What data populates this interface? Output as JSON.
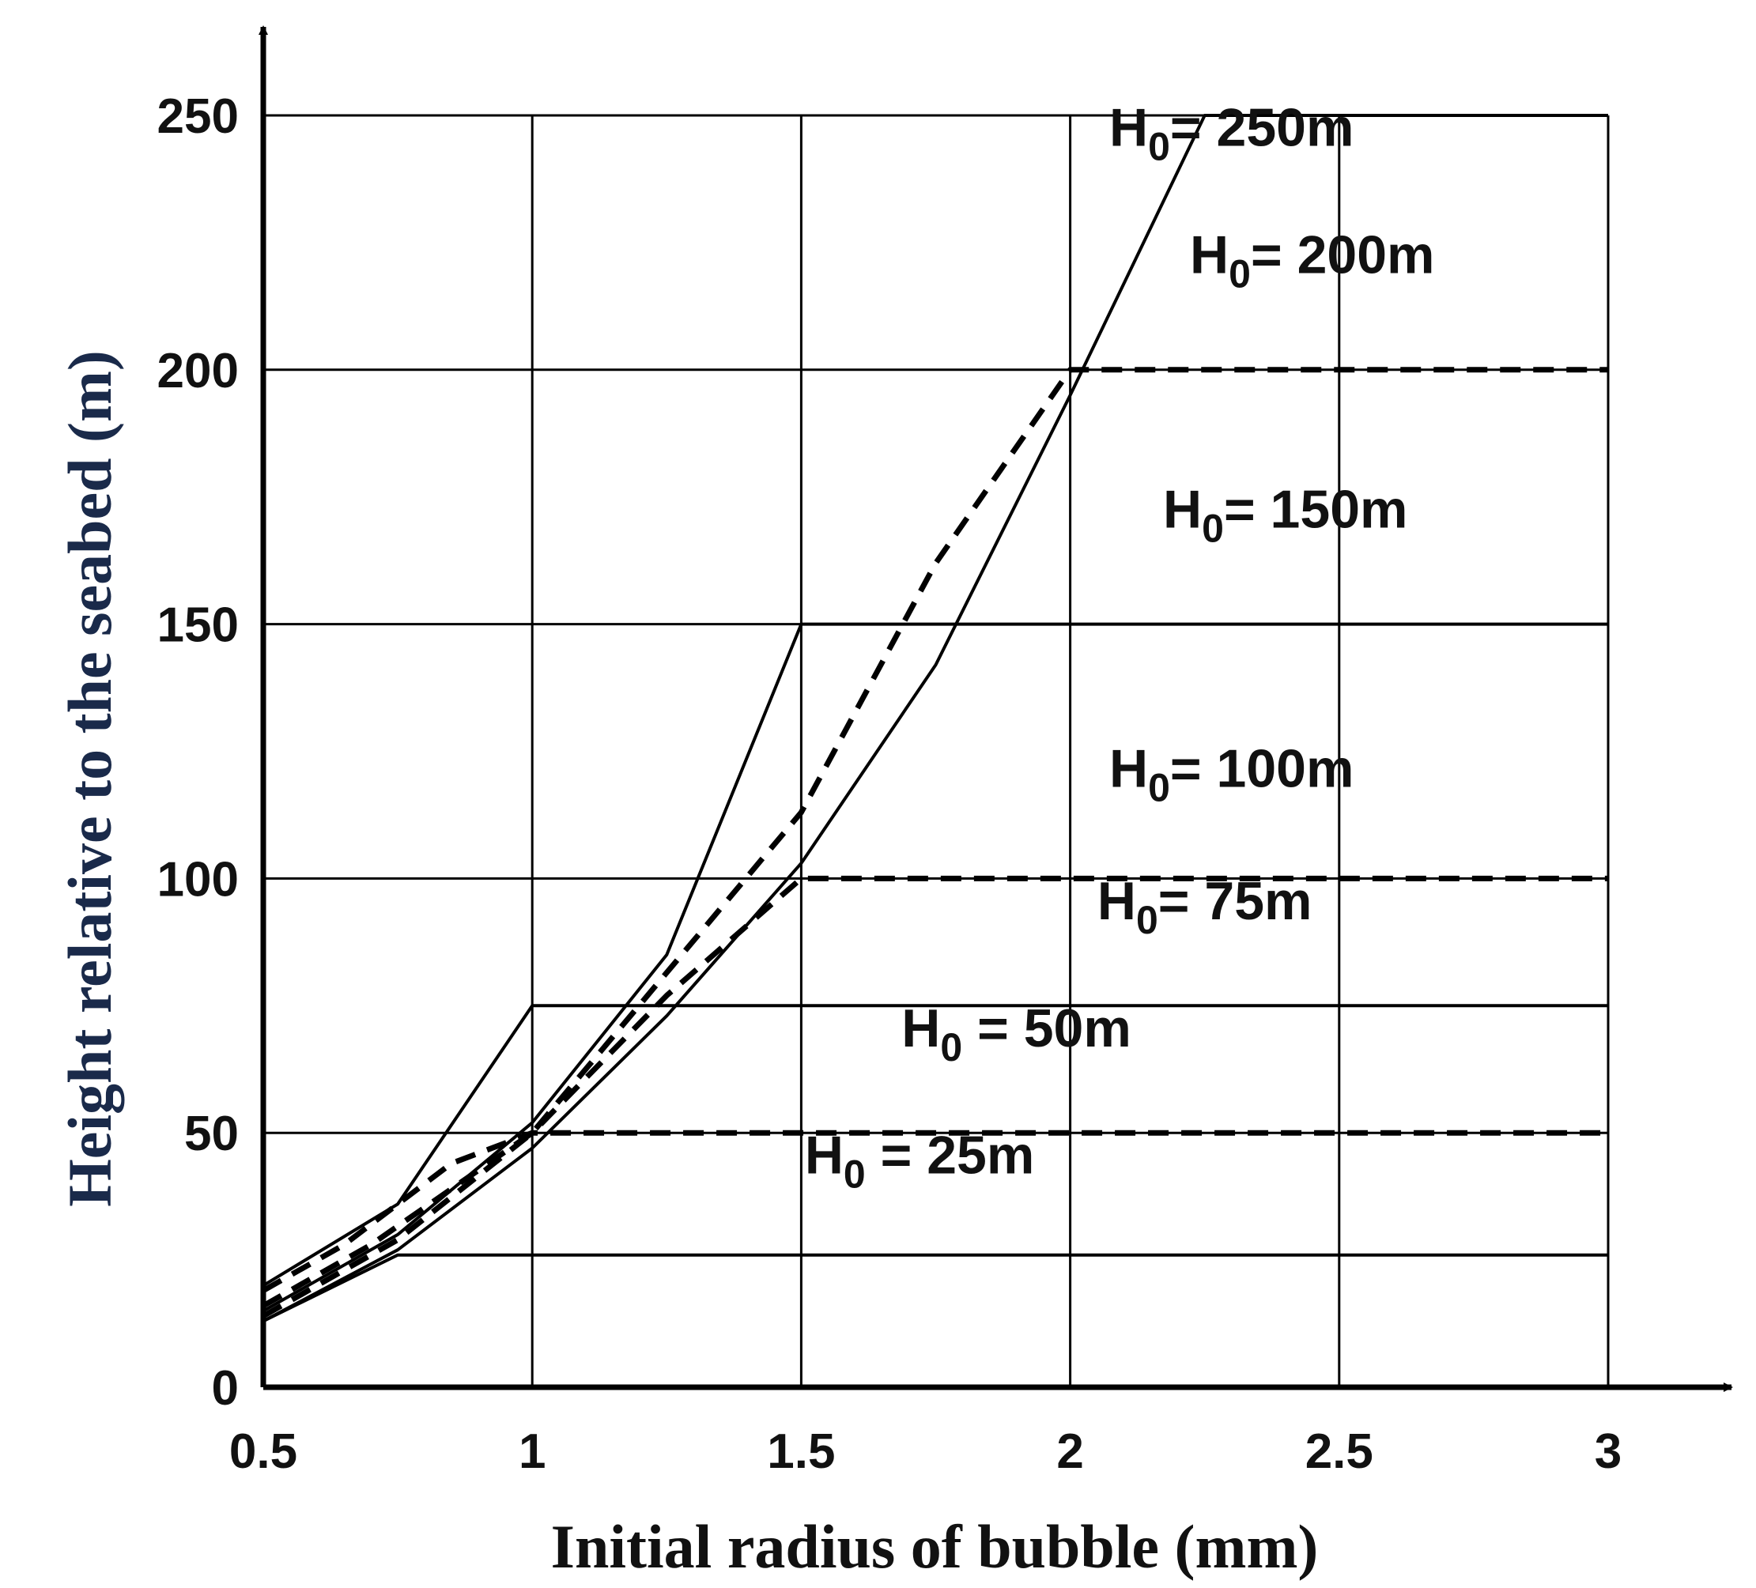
{
  "chart_data": {
    "type": "line",
    "title": "",
    "xlabel": "Initial radius of bubble (mm)",
    "ylabel": "Height relative to the seabed (m)",
    "xlim": [
      0.5,
      3
    ],
    "ylim": [
      0,
      250
    ],
    "x_ticks": [
      "0.5",
      "1",
      "1.5",
      "2",
      "2.5",
      "3"
    ],
    "y_ticks": [
      "0",
      "50",
      "100",
      "150",
      "200",
      "250"
    ],
    "grid": true,
    "colors": {
      "axis": "#000000",
      "ylabel": "#1a2a4a",
      "xlabel": "#111111",
      "line": "#000000"
    },
    "series": [
      {
        "name": "H0 = 25m",
        "style": "solid",
        "points": [
          [
            0.5,
            13
          ],
          [
            0.75,
            26
          ],
          [
            3,
            26
          ]
        ]
      },
      {
        "name": "H0 = 50m",
        "style": "dashed",
        "points": [
          [
            0.5,
            19
          ],
          [
            0.65,
            28
          ],
          [
            0.85,
            44
          ],
          [
            1,
            50
          ],
          [
            3,
            50
          ]
        ]
      },
      {
        "name": "H0 = 75m",
        "style": "solid",
        "points": [
          [
            0.5,
            20
          ],
          [
            0.75,
            36
          ],
          [
            1,
            75
          ],
          [
            3,
            75
          ]
        ]
      },
      {
        "name": "H0 = 100m",
        "style": "dashed",
        "points": [
          [
            0.5,
            16
          ],
          [
            0.7,
            28
          ],
          [
            1,
            50
          ],
          [
            1.25,
            77
          ],
          [
            1.5,
            100
          ],
          [
            3,
            100
          ]
        ]
      },
      {
        "name": "H0 = 150m",
        "style": "solid",
        "points": [
          [
            0.5,
            15
          ],
          [
            0.75,
            30
          ],
          [
            1,
            52
          ],
          [
            1.25,
            85
          ],
          [
            1.5,
            150
          ],
          [
            3,
            150
          ]
        ]
      },
      {
        "name": "H0 = 200m",
        "style": "dashed",
        "points": [
          [
            0.5,
            14
          ],
          [
            0.75,
            29
          ],
          [
            1,
            50
          ],
          [
            1.5,
            113
          ],
          [
            1.75,
            162
          ],
          [
            2,
            200
          ],
          [
            3,
            200
          ]
        ]
      },
      {
        "name": "H0 = 250m",
        "style": "solid",
        "points": [
          [
            0.5,
            13
          ],
          [
            0.75,
            27
          ],
          [
            1,
            47
          ],
          [
            1.25,
            73
          ],
          [
            1.5,
            103
          ],
          [
            1.75,
            142
          ],
          [
            2,
            195
          ],
          [
            2.25,
            250
          ],
          [
            3,
            250
          ]
        ]
      }
    ],
    "annotations": [
      {
        "prefix": "H",
        "sub": "0",
        "suffix": "= 250m",
        "x": 2.3,
        "y": 244
      },
      {
        "prefix": "H",
        "sub": "0",
        "suffix": "= 200m",
        "x": 2.45,
        "y": 219
      },
      {
        "prefix": "H",
        "sub": "0",
        "suffix": "= 150m",
        "x": 2.4,
        "y": 169
      },
      {
        "prefix": "H",
        "sub": "0",
        "suffix": "= 100m",
        "x": 2.3,
        "y": 118
      },
      {
        "prefix": "H",
        "sub": "0",
        "suffix": "= 75m",
        "x": 2.25,
        "y": 92
      },
      {
        "prefix": "H",
        "sub": "0",
        "suffix": " = 50m",
        "x": 1.9,
        "y": 67
      },
      {
        "prefix": "H",
        "sub": "0",
        "suffix": " = 25m",
        "x": 1.72,
        "y": 42
      }
    ]
  }
}
